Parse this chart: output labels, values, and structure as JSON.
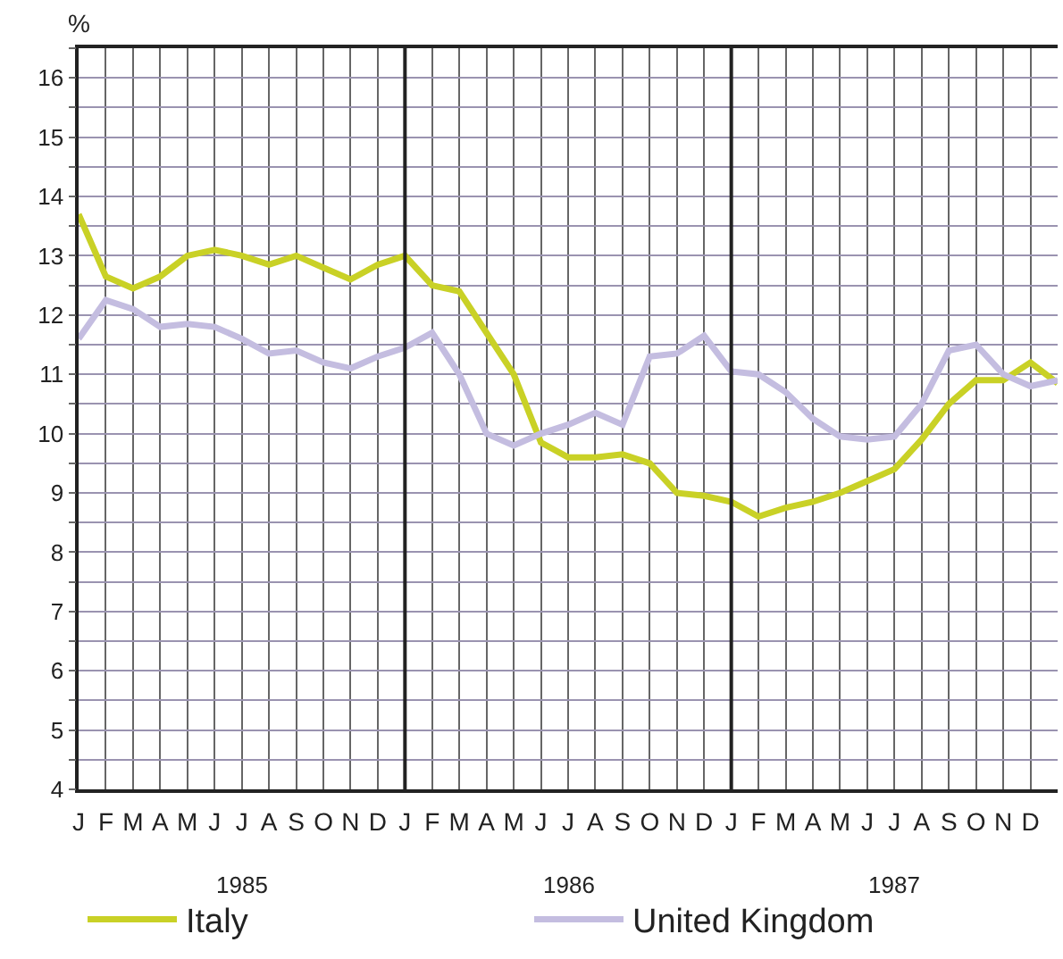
{
  "chart_data": {
    "type": "line",
    "ylabel": "%",
    "categories": [
      "J",
      "F",
      "M",
      "A",
      "M",
      "J",
      "J",
      "A",
      "S",
      "O",
      "N",
      "D",
      "J",
      "F",
      "M",
      "A",
      "M",
      "J",
      "J",
      "A",
      "S",
      "O",
      "N",
      "D",
      "J",
      "F",
      "M",
      "A",
      "M",
      "J",
      "J",
      "A",
      "S",
      "O",
      "N",
      "D",
      null
    ],
    "series": [
      {
        "name": "Italy",
        "color": "#c9d126",
        "values": [
          13.7,
          12.65,
          12.45,
          12.65,
          13.0,
          13.1,
          13.0,
          12.85,
          13.0,
          12.8,
          12.6,
          12.85,
          13.0,
          12.5,
          12.4,
          11.7,
          11.0,
          9.85,
          9.6,
          9.6,
          9.65,
          9.5,
          9.0,
          8.95,
          8.85,
          8.6,
          8.75,
          8.85,
          9.0,
          9.2,
          9.4,
          9.9,
          10.5,
          10.9,
          10.9,
          11.2,
          10.85
        ]
      },
      {
        "name": "United Kingdom",
        "color": "#c4bde0",
        "values": [
          11.6,
          12.25,
          12.1,
          11.8,
          11.85,
          11.8,
          11.6,
          11.35,
          11.4,
          11.2,
          11.1,
          11.3,
          11.45,
          11.7,
          11.0,
          10.0,
          9.8,
          10.0,
          10.15,
          10.35,
          10.15,
          11.3,
          11.35,
          11.65,
          11.05,
          11.0,
          10.7,
          10.25,
          9.95,
          9.9,
          9.95,
          10.5,
          11.4,
          11.5,
          11.0,
          10.8,
          10.9
        ]
      }
    ],
    "ylim": [
      4,
      16.5
    ],
    "yticks": [
      4,
      {
        "value": 4.5,
        "label": null
      },
      5,
      {
        "value": 5.5,
        "label": null
      },
      6,
      {
        "value": 6.5,
        "label": null
      },
      7,
      {
        "value": 7.5,
        "label": null
      },
      8,
      {
        "value": 8.5,
        "label": null
      },
      9,
      {
        "value": 9.5,
        "label": null
      },
      10,
      {
        "value": 10.5,
        "label": null
      },
      11,
      {
        "value": 11.5,
        "label": null
      },
      12,
      {
        "value": 12.5,
        "label": null
      },
      13,
      {
        "value": 13.5,
        "label": null
      },
      14,
      {
        "value": 14.5,
        "label": null
      },
      15,
      {
        "value": 15.5,
        "label": null
      },
      16,
      {
        "value": 16.5,
        "label": null
      }
    ],
    "annotations": [
      "1985",
      "1986",
      "1987"
    ],
    "grid": true,
    "legend": "bottom left",
    "marker": "none",
    "line_style": "solid"
  }
}
